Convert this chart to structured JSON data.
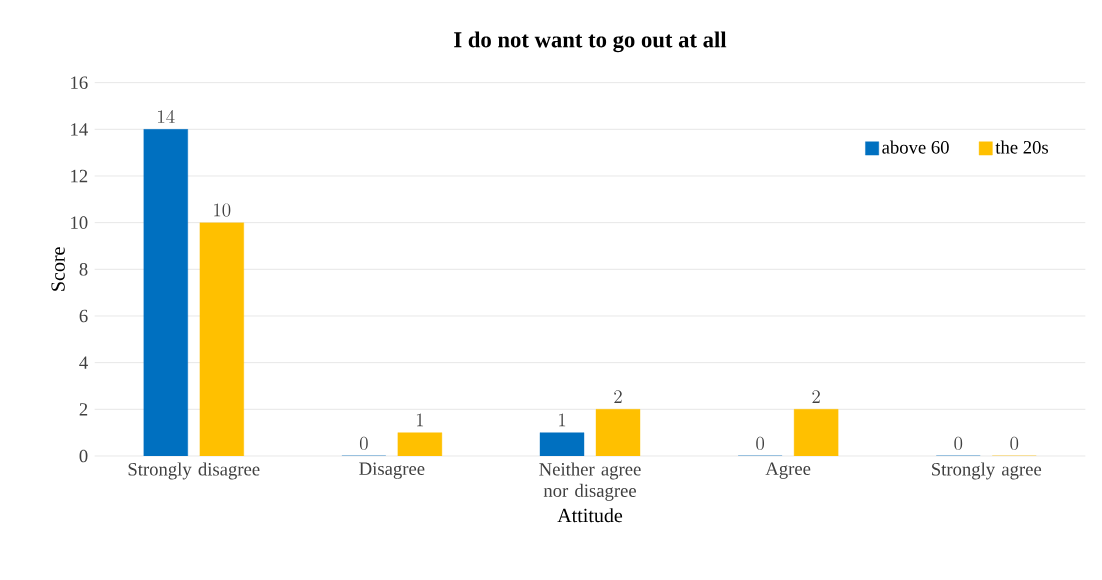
{
  "chart_data": {
    "type": "bar",
    "title": "I do not want to go out at all",
    "xlabel": "Attitude",
    "ylabel": "Score",
    "categories": [
      "Strongly disagree",
      "Disagree",
      "Neither agree nor disagree",
      "Agree",
      "Strongly agree"
    ],
    "series": [
      {
        "name": "above 60",
        "color": "#0070c0",
        "values": [
          14,
          0,
          1,
          0,
          0
        ]
      },
      {
        "name": "the 20s",
        "color": "#ffc000",
        "values": [
          10,
          1,
          2,
          2,
          0
        ]
      }
    ],
    "ylim": [
      0,
      16
    ],
    "yticks": [
      0,
      2,
      4,
      6,
      8,
      10,
      12,
      14,
      16
    ],
    "grid": "y",
    "legend": "top right",
    "data_labels": true
  }
}
